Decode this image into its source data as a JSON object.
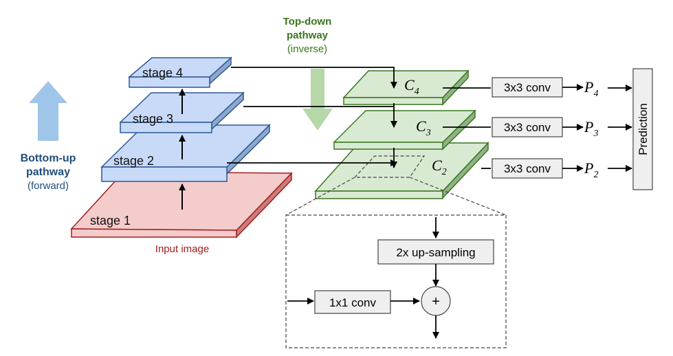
{
  "colors": {
    "blue_face": "#c9daf8",
    "blue_edge": "#2b5797",
    "blue_side": "#8fa7c9",
    "red_face": "#f4cccc",
    "red_edge": "#a61c1c",
    "red_side": "#c97d7d",
    "green_face": "#d9ead3",
    "green_edge": "#38761d",
    "green_side": "#8fb286",
    "arrow_light_blue": "#9fc5e8",
    "arrow_light_green": "#b6d7a8",
    "box_fill": "#efefef",
    "box_edge": "#444444",
    "bottom_up_label": "#1f4e79",
    "top_down_label": "#38761d",
    "input_label": "#a61c1c"
  },
  "left": {
    "pathway_title_1": "Bottom-up",
    "pathway_title_2": "pathway",
    "pathway_sub": "(forward)",
    "input_label": "Input image",
    "stages": [
      "stage 1",
      "stage 2",
      "stage 3",
      "stage 4"
    ]
  },
  "top": {
    "pathway_title_1": "Top-down",
    "pathway_title_2": "pathway",
    "pathway_sub": "(inverse)"
  },
  "right": {
    "c_letter": "C",
    "c_subs": [
      "4",
      "3",
      "2"
    ],
    "p_letter": "P",
    "p_subs": [
      "4",
      "3",
      "2"
    ],
    "conv_labels": [
      "3x3 conv",
      "3x3 conv",
      "3x3 conv"
    ],
    "prediction_label": "Prediction"
  },
  "detail": {
    "upsample_label": "2x up-sampling",
    "conv1x1_label": "1x1 conv",
    "plus_symbol": "+"
  }
}
